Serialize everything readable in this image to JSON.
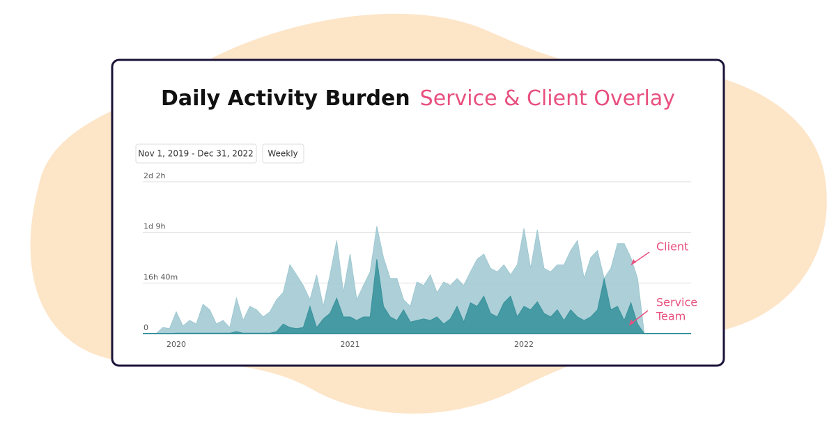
{
  "chart_data": {
    "type": "area",
    "title": "Daily Activity Burden",
    "subtitle": "Service & Client Overlay",
    "controls": [
      "Nov 1, 2019 - Dec 31, 2022",
      "Weekly"
    ],
    "categories": [
      null,
      null,
      null,
      null,
      null,
      "2020",
      null,
      null,
      null,
      null,
      null,
      null,
      null,
      null,
      null,
      null,
      null,
      null,
      null,
      null,
      null,
      null,
      null,
      null,
      null,
      null,
      null,
      null,
      null,
      null,
      null,
      "2021",
      null,
      null,
      null,
      null,
      null,
      null,
      null,
      null,
      null,
      null,
      null,
      null,
      null,
      null,
      null,
      null,
      null,
      null,
      null,
      null,
      null,
      null,
      null,
      null,
      null,
      "2022",
      null,
      null,
      null,
      null,
      null,
      null,
      null,
      null,
      null,
      null,
      null,
      null,
      null,
      null,
      null,
      null,
      null,
      null,
      null,
      null,
      null,
      null,
      null,
      null,
      null
    ],
    "series": [
      {
        "name": "Client",
        "color": "#9fc8d1",
        "values": [
          0,
          0,
          0,
          120,
          100,
          430,
          150,
          260,
          190,
          580,
          470,
          190,
          260,
          120,
          700,
          260,
          540,
          470,
          330,
          430,
          670,
          810,
          1360,
          1160,
          950,
          670,
          1160,
          540,
          1160,
          1840,
          810,
          1570,
          670,
          950,
          1220,
          2120,
          1500,
          1090,
          1090,
          670,
          540,
          1020,
          950,
          1160,
          810,
          1020,
          950,
          1090,
          950,
          1220,
          1470,
          1570,
          1290,
          1220,
          1360,
          1160,
          1360,
          2080,
          1290,
          2050,
          1290,
          1220,
          1360,
          1360,
          1640,
          1840,
          1090,
          1500,
          1640,
          1090,
          1290,
          1780,
          1780,
          1500,
          1090,
          0,
          0,
          0,
          0,
          0,
          0,
          0,
          0
        ]
      },
      {
        "name": "Service Team",
        "color": "#3a939d",
        "values": [
          0,
          0,
          0,
          0,
          0,
          10,
          10,
          10,
          10,
          10,
          10,
          10,
          10,
          10,
          40,
          10,
          10,
          10,
          10,
          10,
          40,
          190,
          120,
          100,
          120,
          540,
          120,
          290,
          400,
          700,
          330,
          330,
          260,
          330,
          330,
          1470,
          540,
          330,
          260,
          470,
          230,
          260,
          290,
          260,
          330,
          190,
          290,
          540,
          230,
          610,
          540,
          740,
          400,
          330,
          610,
          740,
          330,
          540,
          470,
          630,
          400,
          330,
          470,
          260,
          470,
          330,
          260,
          330,
          470,
          1090,
          470,
          540,
          260,
          610,
          190,
          0,
          0,
          0,
          0,
          0,
          0,
          0,
          0
        ]
      }
    ],
    "annotations": [
      {
        "lines": [
          "Client"
        ]
      },
      {
        "lines": [
          "Service",
          "Team"
        ]
      }
    ],
    "annotation_color": "#e8507f",
    "ylim": [
      0,
      3000
    ],
    "yticks": [
      0,
      {
        "value": 1000,
        "label": "16h 40m"
      },
      {
        "value": 2000,
        "label": "1d 9h"
      },
      {
        "value": 3000,
        "label": "2d 2h"
      }
    ],
    "grid": true
  }
}
